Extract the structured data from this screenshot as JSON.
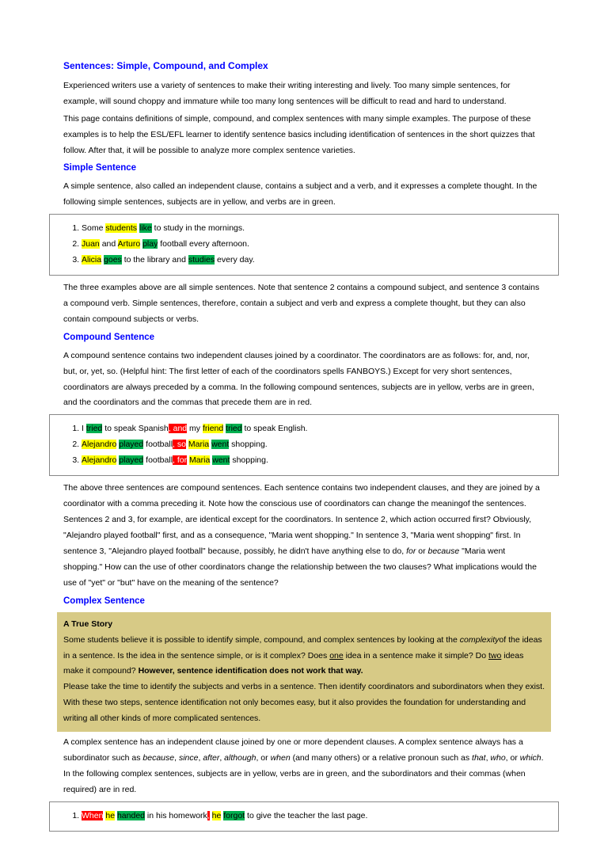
{
  "title": "Sentences: Simple, Compound, and Complex",
  "intro1": "Experienced writers use a variety of sentences to make their writing interesting and lively. Too many simple sentences, for example, will sound choppy and immature while too many long sentences will be difficult to read and hard to understand.",
  "intro2": "This page contains definitions of simple, compound, and complex sentences with many simple examples. The purpose of these examples is to help the ESL/EFL learner to identify sentence basics including identification of sentences in the short quizzes that follow. After that, it will be possible to analyze more complex sentence varieties.",
  "simple": {
    "heading": "Simple Sentence",
    "def": "A simple sentence, also called an independent clause, contains a subject and a verb, and it expresses a complete thought. In the following simple sentences, subjects are in yellow, and verbs are in green.",
    "ex1": {
      "p1": "Some ",
      "s": "students",
      "sp": " ",
      "v": "like",
      "p2": " to study in the mornings."
    },
    "ex2": {
      "s1": "Juan",
      "a": " and ",
      "s2": "Arturo",
      "sp": " ",
      "v": "play",
      "p2": " football every afternoon."
    },
    "ex3": {
      "s": "Alicia",
      "sp": " ",
      "v1": "goes",
      "m": " to the library and ",
      "v2": "studies",
      "p2": " every day."
    },
    "after": "The three examples above are all simple sentences. Note that sentence 2 contains a compound subject, and sentence 3 contains a compound verb. Simple sentences, therefore, contain a subject and verb and express a complete thought, but they can also contain compound subjects or verbs."
  },
  "compound": {
    "heading": "Compound Sentence",
    "def": "A compound sentence contains two independent clauses joined by a coordinator. The coordinators are as follows: for, and, nor, but, or, yet, so. (Helpful hint: The first letter of each of the coordinators spells FANBOYS.) Except for very short sentences, coordinators are always preceded by a comma. In the following compound sentences, subjects are in yellow, verbs are in green, and the coordinators and the commas that precede them are in red.",
    "ex1": {
      "p1": "I ",
      "v1": "tried",
      "m1": " to speak Spanish",
      "c": ", and",
      "m2": " my ",
      "s2": "friend",
      "sp": " ",
      "v2": "tried",
      "p2": " to speak English."
    },
    "ex2": {
      "s1": "Alejandro",
      "sp1": " ",
      "v1": "played",
      "m1": " football",
      "c": ", so",
      "sp2": " ",
      "s2": "Maria",
      "sp3": " ",
      "v2": "went",
      "p2": " shopping."
    },
    "ex3": {
      "s1": "Alejandro",
      "sp1": " ",
      "v1": "played",
      "m1": " football",
      "c": ", for",
      "sp2": " ",
      "s2": "Maria",
      "sp3": " ",
      "v2": "went",
      "p2": " shopping."
    },
    "after1": "The above three sentences are compound sentences. Each sentence contains two independent clauses, and they are joined by a coordinator with a comma preceding it. Note how the conscious use of coordinators can change the meaningof the sentences. Sentences 2 and 3, for example, are identical except for the coordinators. In sentence 2, which action occurred first? Obviously, \"Alejandro played football\" first, and as a consequence, \"Maria went shopping.\" In sentence 3, \"Maria went shopping\" first. In sentence 3, \"Alejandro played football\" because, possibly, he didn't have anything else to do, ",
    "after_it1": "for",
    "after_mid": " or ",
    "after_it2": "because",
    "after2": " \"Maria went shopping.\" How can the use of other coordinators change the relationship between the two clauses? What implications would the use of \"yet\" or \"but\" have on the meaning of the sentence?"
  },
  "complex": {
    "heading": "Complex Sentence",
    "story": {
      "title": "A True Story",
      "p1a": "Some students believe it is possible to identify simple, compound, and complex sentences by looking at the ",
      "p1it": "complexity",
      "p1b": "of the ideas in a sentence. Is the idea in the sentence simple, or is it complex? Does ",
      "p1u1": "one",
      "p1c": " idea in a sentence make it simple? Do ",
      "p1u2": "two",
      "p1d": " ideas make it compound? ",
      "p1bold": "However, sentence identification does not work that way.",
      "p2": "Please take the time to identify the subjects and verbs in a sentence. Then identify coordinators and subordinators when they exist. With these two steps, sentence identification not only becomes easy, but it also provides the foundation for understanding and writing all other kinds of more complicated sentences."
    },
    "def1": "A complex sentence has an independent clause joined by one or more dependent clauses. A complex sentence always has a subordinator such as ",
    "it1": "because",
    "c1": ", ",
    "it2": "since",
    "c2": ", ",
    "it3": "after",
    "c3": ", ",
    "it4": "although",
    "c4": ", or ",
    "it5": "when",
    "def2": " (and many others) or a relative pronoun such as ",
    "it6": "that",
    "c5": ", ",
    "it7": "who",
    "c6": ", or ",
    "it8": "which",
    "def3": ". In the following complex sentences, subjects are in yellow, verbs are in green, and the subordinators and their commas (when required) are in red.",
    "ex1": {
      "sub": "When",
      "sp1": " ",
      "s1": "he",
      "sp2": " ",
      "v1": "handed",
      "m": " in his homework",
      "comma": ",",
      "sp3": " ",
      "s2": "he",
      "sp4": " ",
      "v2": "forgot",
      "p2": " to give the teacher the last page."
    }
  }
}
